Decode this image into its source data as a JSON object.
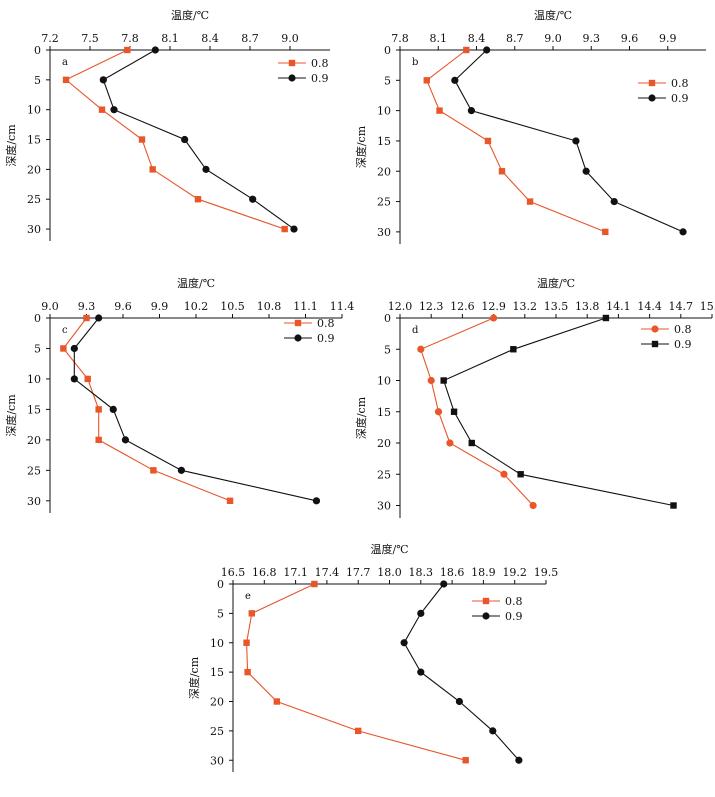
{
  "chart_data": [
    {
      "id": "a",
      "type": "line",
      "panel_label": "a",
      "x_title": "温度/℃",
      "y_title": "深度/cm",
      "xlim": [
        7.2,
        9.3
      ],
      "xticks": [
        7.2,
        7.5,
        7.8,
        8.1,
        8.4,
        8.7,
        9.0
      ],
      "xtick_labels": [
        "7.2",
        "7.5",
        "7.8",
        "8.1",
        "8.4",
        "8.7",
        "9.0"
      ],
      "ylim": [
        0,
        32
      ],
      "yticks": [
        0,
        5,
        10,
        15,
        20,
        25,
        30
      ],
      "ytick_labels": [
        "0",
        "5",
        "10",
        "15",
        "20",
        "25",
        "30"
      ],
      "legend_position": "top-right",
      "series": [
        {
          "name": "0.8",
          "color": "#e8562a",
          "marker": "square",
          "x": [
            7.78,
            7.32,
            7.59,
            7.89,
            7.97,
            8.31,
            8.96
          ],
          "y": [
            0,
            5,
            10,
            15,
            20,
            25,
            30
          ]
        },
        {
          "name": "0.9",
          "color": "#111111",
          "marker": "circle",
          "x": [
            7.99,
            7.6,
            7.68,
            8.21,
            8.37,
            8.72,
            9.03
          ],
          "y": [
            0,
            5,
            10,
            15,
            20,
            25,
            30
          ]
        }
      ]
    },
    {
      "id": "b",
      "type": "line",
      "panel_label": "b",
      "x_title": "温度/℃",
      "y_title": "深度/cm",
      "xlim": [
        7.8,
        10.2
      ],
      "xticks": [
        7.8,
        8.1,
        8.4,
        8.7,
        9.0,
        9.3,
        9.6,
        9.9
      ],
      "xtick_labels": [
        "7.8",
        "8.1",
        "8.4",
        "8.7",
        "9.0",
        "9.3",
        "9.6",
        "9.9"
      ],
      "ylim": [
        0,
        32
      ],
      "yticks": [
        0,
        5,
        10,
        15,
        20,
        25,
        30
      ],
      "ytick_labels": [
        "0",
        "5",
        "10",
        "15",
        "20",
        "25",
        "30"
      ],
      "legend_position": "top-right",
      "series": [
        {
          "name": "0.8",
          "color": "#e8562a",
          "marker": "square",
          "x": [
            8.32,
            8.01,
            8.11,
            8.49,
            8.6,
            8.82,
            9.41
          ],
          "y": [
            0,
            5,
            10,
            15,
            20,
            25,
            30
          ]
        },
        {
          "name": "0.9",
          "color": "#111111",
          "marker": "circle",
          "x": [
            8.48,
            8.23,
            8.36,
            9.18,
            9.26,
            9.48,
            10.02
          ],
          "y": [
            0,
            5,
            10,
            15,
            20,
            25,
            30
          ]
        }
      ]
    },
    {
      "id": "c",
      "type": "line",
      "panel_label": "c",
      "x_title": "温度/℃",
      "y_title": "深度/cm",
      "xlim": [
        9.0,
        11.4
      ],
      "xticks": [
        9.0,
        9.3,
        9.6,
        9.9,
        10.2,
        10.5,
        10.8,
        11.1,
        11.4
      ],
      "xtick_labels": [
        "9.0",
        "9.3",
        "9.6",
        "9.9",
        "10.2",
        "10.5",
        "10.8",
        "11.1",
        "11.4"
      ],
      "ylim": [
        0,
        32
      ],
      "yticks": [
        0,
        5,
        10,
        15,
        20,
        25,
        30
      ],
      "ytick_labels": [
        "0",
        "5",
        "10",
        "15",
        "20",
        "25",
        "30"
      ],
      "legend_position": "top-right",
      "series": [
        {
          "name": "0.8",
          "color": "#e8562a",
          "marker": "square",
          "x": [
            9.3,
            9.11,
            9.31,
            9.4,
            9.4,
            9.85,
            10.48
          ],
          "y": [
            0,
            5,
            10,
            15,
            20,
            25,
            30
          ]
        },
        {
          "name": "0.9",
          "color": "#111111",
          "marker": "circle",
          "x": [
            9.4,
            9.2,
            9.2,
            9.52,
            9.62,
            10.08,
            11.19
          ],
          "y": [
            0,
            5,
            10,
            15,
            20,
            25,
            30
          ]
        }
      ]
    },
    {
      "id": "d",
      "type": "line",
      "panel_label": "d",
      "x_title": "温度/℃",
      "y_title": "深度/cm",
      "xlim": [
        12.0,
        15.0
      ],
      "xticks": [
        12.0,
        12.3,
        12.6,
        12.9,
        13.2,
        13.5,
        13.8,
        14.1,
        14.4,
        14.7,
        15.0
      ],
      "xtick_labels": [
        "12.0",
        "12.3",
        "12.6",
        "12.9",
        "13.2",
        "13.5",
        "13.8",
        "14.1",
        "14.4",
        "14.7",
        "15.0"
      ],
      "ylim": [
        0,
        32
      ],
      "yticks": [
        0,
        5,
        10,
        15,
        20,
        25,
        30
      ],
      "ytick_labels": [
        "0",
        "5",
        "10",
        "15",
        "20",
        "25",
        "30"
      ],
      "legend_position": "top-right",
      "series": [
        {
          "name": "0.8",
          "color": "#e8562a",
          "marker": "circle",
          "x": [
            12.9,
            12.2,
            12.3,
            12.37,
            12.48,
            13.0,
            13.28
          ],
          "y": [
            0,
            5,
            10,
            15,
            20,
            25,
            30
          ]
        },
        {
          "name": "0.9",
          "color": "#111111",
          "marker": "square",
          "x": [
            13.98,
            13.09,
            12.42,
            12.52,
            12.69,
            13.16,
            14.63
          ],
          "y": [
            0,
            5,
            10,
            15,
            20,
            25,
            30
          ]
        }
      ]
    },
    {
      "id": "e",
      "type": "line",
      "panel_label": "e",
      "x_title": "温度/℃",
      "y_title": "深度/cm",
      "xlim": [
        16.5,
        19.5
      ],
      "xticks": [
        16.5,
        16.8,
        17.1,
        17.4,
        17.7,
        18.0,
        18.3,
        18.6,
        18.9,
        19.2,
        19.5
      ],
      "xtick_labels": [
        "16.5",
        "16.8",
        "17.1",
        "17.4",
        "17.7",
        "18.0",
        "18.3",
        "18.6",
        "18.9",
        "19.2",
        "19.5"
      ],
      "ylim": [
        0,
        32
      ],
      "yticks": [
        0,
        5,
        10,
        15,
        20,
        25,
        30
      ],
      "ytick_labels": [
        "0",
        "5",
        "10",
        "15",
        "20",
        "25",
        "30"
      ],
      "legend_position": "top-right",
      "series": [
        {
          "name": "0.8",
          "color": "#e8562a",
          "marker": "square",
          "x": [
            17.28,
            16.68,
            16.63,
            16.64,
            16.92,
            17.7,
            18.73
          ],
          "y": [
            0,
            5,
            10,
            15,
            20,
            25,
            30
          ]
        },
        {
          "name": "0.9",
          "color": "#111111",
          "marker": "circle",
          "x": [
            18.52,
            18.3,
            18.14,
            18.3,
            18.67,
            18.99,
            19.24
          ],
          "y": [
            0,
            5,
            10,
            15,
            20,
            25,
            30
          ]
        }
      ]
    }
  ]
}
